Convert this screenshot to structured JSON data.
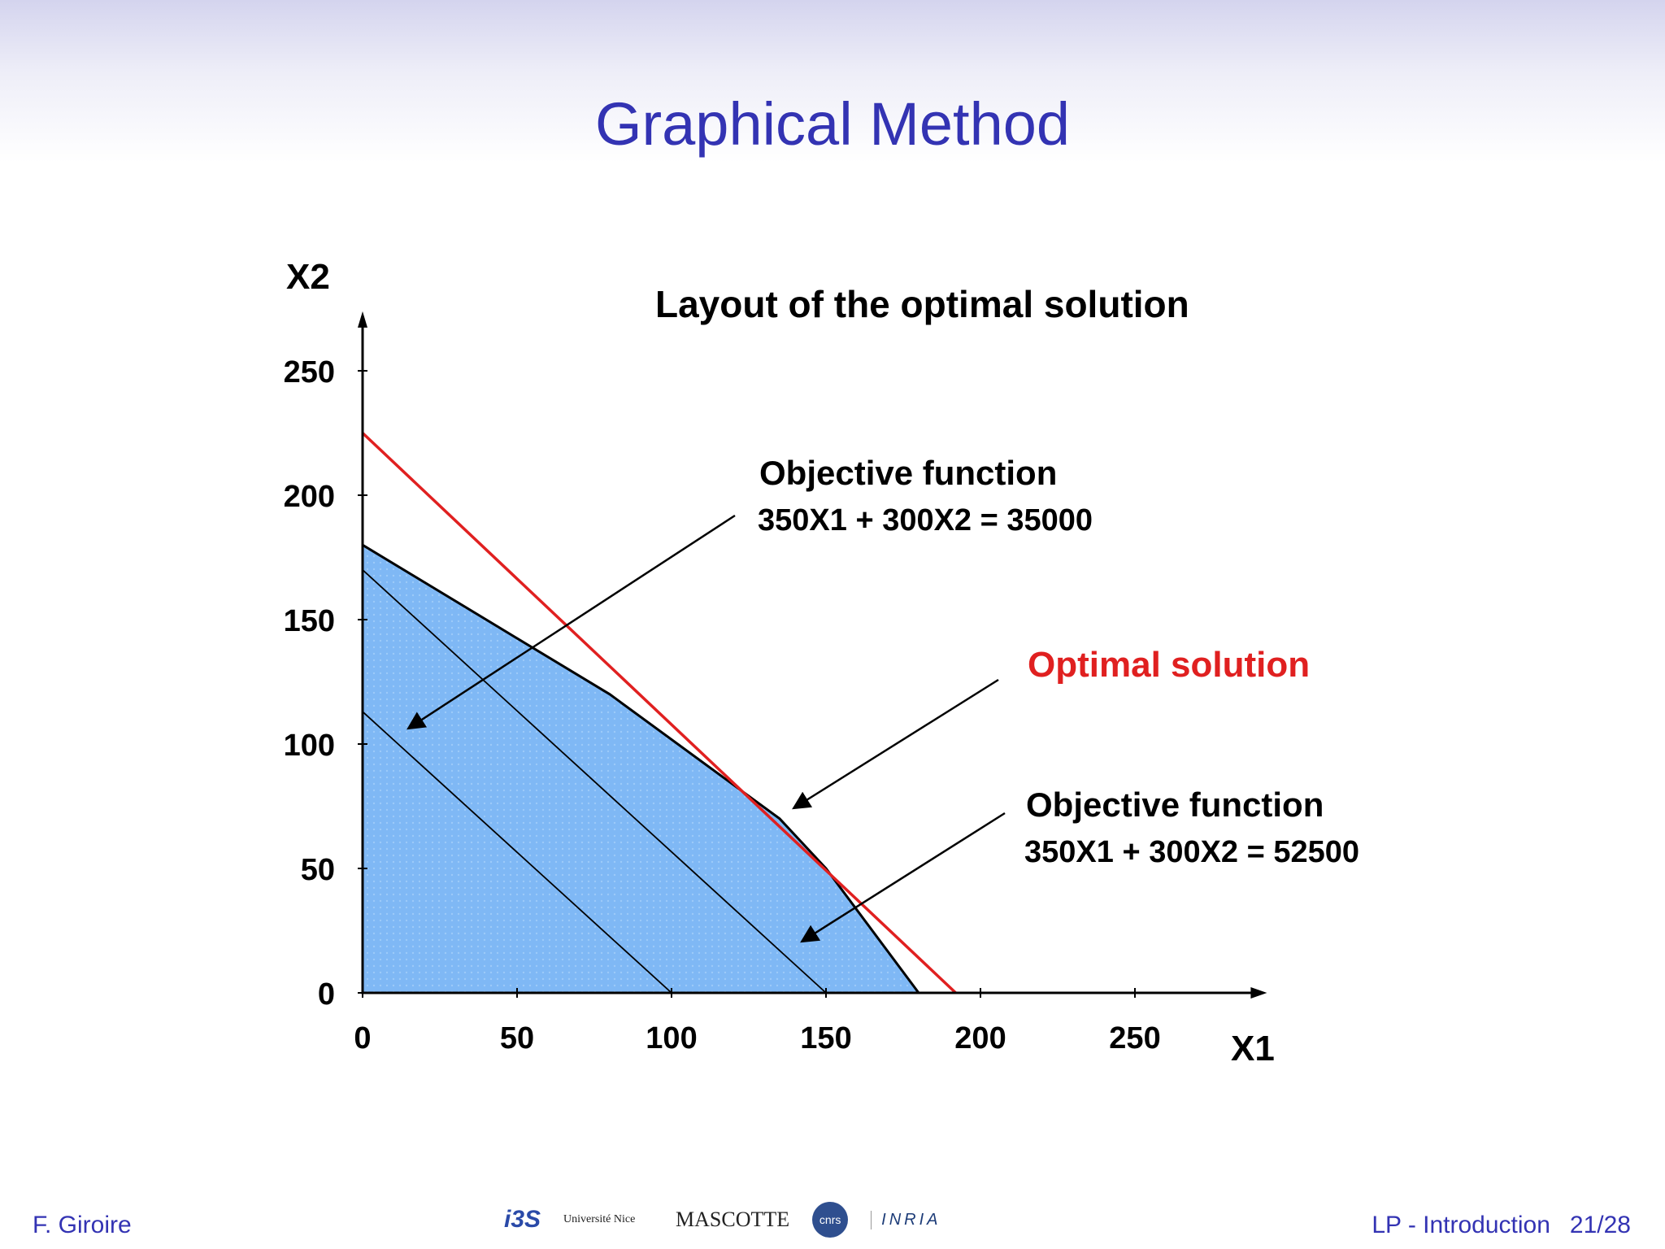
{
  "slide": {
    "title": "Graphical Method",
    "footer_author": "F. Giroire",
    "footer_section": "LP - Introduction",
    "footer_page": "21/28"
  },
  "logos": [
    {
      "name": "i3s",
      "text": "i3S"
    },
    {
      "name": "universite-nice",
      "text": "Université Nice"
    },
    {
      "name": "mascotte",
      "text": "MASCOTTE"
    },
    {
      "name": "cnrs",
      "text": "cnrs"
    },
    {
      "name": "inria",
      "text": "INRIA"
    }
  ],
  "colors": {
    "title": "#3333b3",
    "feasible_region": "#7fb8f5",
    "optimal_line": "#e02020",
    "axis": "#000000"
  },
  "chart_data": {
    "type": "line",
    "title": "Layout of the optimal solution",
    "xlabel": "X1",
    "ylabel": "X2",
    "xlim": [
      0,
      290
    ],
    "ylim": [
      0,
      270
    ],
    "xticks": [
      "0",
      "50",
      "100",
      "150",
      "200",
      "250"
    ],
    "yticks": [
      "0",
      "50",
      "100",
      "150",
      "200",
      "250"
    ],
    "feasible_region": {
      "x": [
        0,
        0,
        80,
        135,
        150,
        180
      ],
      "y": [
        0,
        180,
        120,
        70,
        50,
        0
      ]
    },
    "iso_lines": [
      {
        "x": [
          0,
          100
        ],
        "y": [
          113,
          0
        ]
      },
      {
        "x": [
          0,
          150
        ],
        "y": [
          170,
          0
        ]
      }
    ],
    "optimal_line": {
      "x": [
        0,
        192
      ],
      "y": [
        225,
        0
      ]
    },
    "annotations": [
      {
        "label": "Objective function",
        "equation": "350X1 + 300X2 = 35000",
        "point": [
          15,
          106
        ],
        "color": "#000000"
      },
      {
        "label": "Optimal solution",
        "point": [
          139,
          75
        ],
        "color": "#e02020"
      },
      {
        "label": "Objective function",
        "equation": "350X1 + 300X2 = 52500",
        "point": [
          142,
          20
        ],
        "color": "#000000"
      }
    ]
  }
}
